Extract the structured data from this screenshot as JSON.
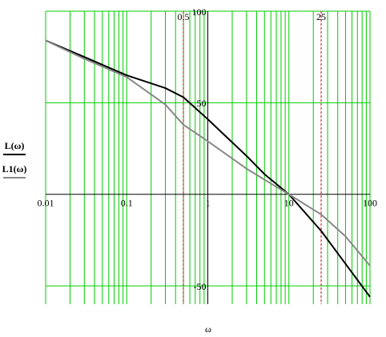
{
  "chart_data": {
    "type": "line",
    "x_label": "ω",
    "log_x": true,
    "minor_grid": true,
    "grid_color": "#00cc00",
    "x": [
      0.01,
      0.03,
      0.1,
      0.3,
      0.5,
      1,
      3,
      5,
      10,
      25,
      50,
      100
    ],
    "series": [
      {
        "name": "L(ω)",
        "color": "#000000",
        "values": [
          84,
          75,
          65,
          58,
          53,
          41,
          21,
          11,
          0,
          -20,
          -38,
          -56
        ]
      },
      {
        "name": "L1(ω)",
        "color": "#888888",
        "values": [
          84,
          74,
          64,
          49,
          38,
          29,
          14,
          8,
          0,
          -11,
          -23,
          -39
        ]
      }
    ],
    "xlim": [
      0.01,
      100
    ],
    "xticks": [
      0.01,
      0.1,
      1,
      10,
      100
    ],
    "ylim": [
      -60,
      100
    ],
    "yticks": [
      -50,
      50,
      100
    ],
    "x_markers": [
      0.5,
      25
    ],
    "marker_color": "#cc0000"
  }
}
